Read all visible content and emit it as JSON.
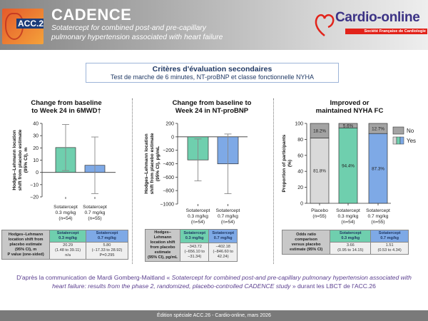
{
  "header": {
    "logo_text": "ACC.26",
    "title": "CADENCE",
    "subtitle_line1": "Sotatercept for combined post-and pre-capillary",
    "subtitle_line2": "pulmonary hypertension associated with heart failure",
    "brand": "Cardio-online",
    "brand_sub": "Société Française de Cardiologie"
  },
  "section": {
    "title": "Critères d'évaluation secondaires",
    "subtitle": "Test de marche de 6 minutes, NT-proBNP et classe fonctionnelle NYHA"
  },
  "colors": {
    "green": "#6fcfae",
    "blue": "#7ea9e6",
    "placebo": "#d9d9d9",
    "no": "#a3a3a3",
    "purple": "#5b3f8f",
    "navy": "#1f3864"
  },
  "chart_data": [
    {
      "type": "bar",
      "title": [
        "Change from baseline",
        "to Week 24 in 6MWD†"
      ],
      "ylabel": [
        "Hodges–Lehmann location",
        "shift from placebo estimate",
        "(95% CI), m"
      ],
      "ylim": [
        -20,
        40
      ],
      "yticks": [
        -20,
        -10,
        0,
        10,
        20,
        30,
        40
      ],
      "categories": [
        [
          "Sotatercept",
          "0.3 mg/kg",
          "(n=54)"
        ],
        [
          "Sotatercept",
          "0.7 mg/kg",
          "(n=55)"
        ]
      ],
      "values": [
        20.29,
        5.8
      ],
      "ci": [
        [
          1.48,
          39.11
        ],
        [
          -17.33,
          28.92
        ]
      ],
      "bar_colors": [
        "#6fcfae",
        "#7ea9e6"
      ]
    },
    {
      "type": "bar",
      "title": [
        "Change from baseline to",
        "Week 24 in NT-proBNP"
      ],
      "ylabel": [
        "Hodges–Lehmann location",
        "shift from placebo estimate",
        "(95% CI), pg/mL"
      ],
      "ylim": [
        -1000,
        200
      ],
      "yticks": [
        -1000,
        -800,
        -600,
        -400,
        -200,
        0,
        200
      ],
      "categories": [
        [
          "Sotatercept",
          "0.3 mg/kg",
          "(n=54)"
        ],
        [
          "Sotatercept",
          "0.7 mg/kg",
          "(n=54)"
        ]
      ],
      "values": [
        -343.72,
        -402.18
      ],
      "ci": [
        [
          -656.1,
          -31.34
        ],
        [
          -846.6,
          42.24
        ]
      ],
      "bar_colors": [
        "#6fcfae",
        "#7ea9e6"
      ]
    },
    {
      "type": "stacked-bar",
      "title": [
        "Improved or",
        "maintained NYHA FC"
      ],
      "ylabel": [
        "Proportion of participants",
        "(%)"
      ],
      "ylim": [
        0,
        100
      ],
      "yticks": [
        0,
        20,
        40,
        60,
        80,
        100
      ],
      "categories": [
        [
          "Placebo",
          "(n=55)"
        ],
        [
          "Sotatercept",
          "0.3 mg/kg",
          "(n=54)"
        ],
        [
          "Sotatercept",
          "0.7 mg/kg",
          "(n=55)"
        ]
      ],
      "series": [
        {
          "name": "Yes",
          "values": [
            81.8,
            94.4,
            87.3
          ],
          "labels": [
            "81.8%",
            "94.4%",
            "87.3%"
          ],
          "colors": [
            "#d9d9d9",
            "#6fcfae",
            "#7ea9e6"
          ]
        },
        {
          "name": "No",
          "values": [
            18.2,
            5.6,
            12.7
          ],
          "labels": [
            "18.2%",
            "5.6%",
            "12.7%"
          ],
          "colors": [
            "#a3a3a3",
            "#a3a3a3",
            "#a3a3a3"
          ]
        }
      ],
      "legend": "right"
    }
  ],
  "tables": [
    {
      "label": [
        "Hodges–Lehmann",
        "location shift from",
        "placebo estimate",
        "(95% CI), m",
        "P value (one-sided)"
      ],
      "col1": {
        "head": [
          "Sotatercept",
          "0.3 mg/kg"
        ],
        "lines": [
          "20.29",
          "(1.48 to 39.11)",
          "n/a"
        ]
      },
      "col2": {
        "head": [
          "Sotatercept",
          "0.7 mg/kg"
        ],
        "lines": [
          "5.80",
          "(−17.33 to 28.92)",
          "P=0.295"
        ]
      }
    },
    {
      "label": [
        "Hodges–",
        "Lehmann",
        "location shift",
        "from placebo",
        "estimate",
        "(95% CI), pg/mL"
      ],
      "col1": {
        "head": [
          "Sotatercept",
          "0.3 mg/kg"
        ],
        "lines": [
          "−343.72",
          "(−656.10 to −31.34)"
        ]
      },
      "col2": {
        "head": [
          "Sotatercept",
          "0.7 mg/kg"
        ],
        "lines": [
          "−402.18",
          "(−846.60 to 42.24)"
        ]
      }
    },
    {
      "label": [
        "Odds ratio",
        "comparison",
        "versus placebo",
        "estimate (95% CI)"
      ],
      "col1": {
        "head": [
          "Sotatercept",
          "0.3 mg/kg"
        ],
        "lines": [
          "3.66",
          "(0.95 to 14.15)"
        ]
      },
      "col2": {
        "head": [
          "Sotatercept",
          "0.7 mg/kg"
        ],
        "lines": [
          "1.51",
          "(0.53 to 4.34)"
        ]
      }
    }
  ],
  "reference": {
    "prefix": "D'après la communication de Mardi Gomberg-Maitland « ",
    "italic": "Sotatercept for combined post-and pre-capillary pulmonary hypertension associated with heart failure: results from the phase 2, randomized, placebo-controlled CADENCE study",
    "suffix": " » durant les LBCT de l'ACC.26"
  },
  "footer": "Édition spéciale ACC.26 - Cardio-online, mars 2026"
}
